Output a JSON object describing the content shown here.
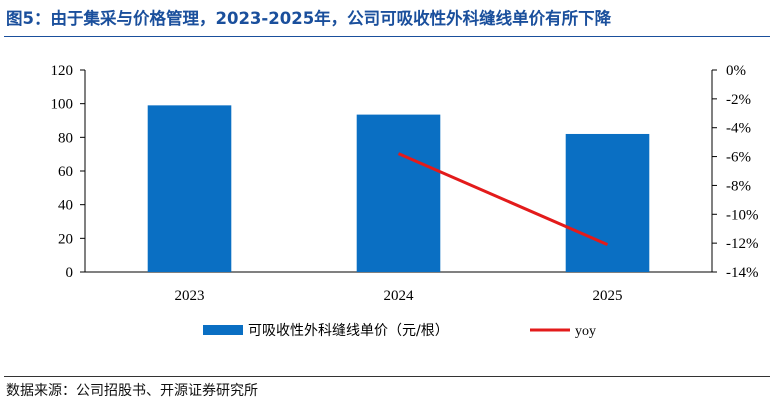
{
  "title": "图5：由于集采与价格管理，2023-2025年，公司可吸收性外科缝线单价有所下降",
  "source": "数据来源：公司招股书、开源证券研究所",
  "chart_data": {
    "type": "bar",
    "categories": [
      "2023",
      "2024",
      "2025"
    ],
    "series": [
      {
        "name": "可吸收性外科缝线单价（元/根）",
        "type": "bar",
        "axis": "left",
        "color": "#0a6fc3",
        "values": [
          99,
          93.5,
          82
        ]
      },
      {
        "name": "yoy",
        "type": "line",
        "axis": "right",
        "color": "#e31b1b",
        "values": [
          null,
          -5.8,
          -12.1
        ]
      }
    ],
    "y_left": {
      "min": 0,
      "max": 120,
      "ticks": [
        0,
        20,
        40,
        60,
        80,
        100,
        120
      ],
      "tick_labels": [
        "0",
        "20",
        "40",
        "60",
        "80",
        "100",
        "120"
      ]
    },
    "y_right": {
      "min": -14,
      "max": 0,
      "ticks": [
        0,
        -2,
        -4,
        -6,
        -8,
        -10,
        -12,
        -14
      ],
      "tick_labels": [
        "0%",
        "-2%",
        "-4%",
        "-6%",
        "-8%",
        "-10%",
        "-12%",
        "-14%"
      ]
    },
    "grid": false,
    "legend_position": "bottom"
  }
}
